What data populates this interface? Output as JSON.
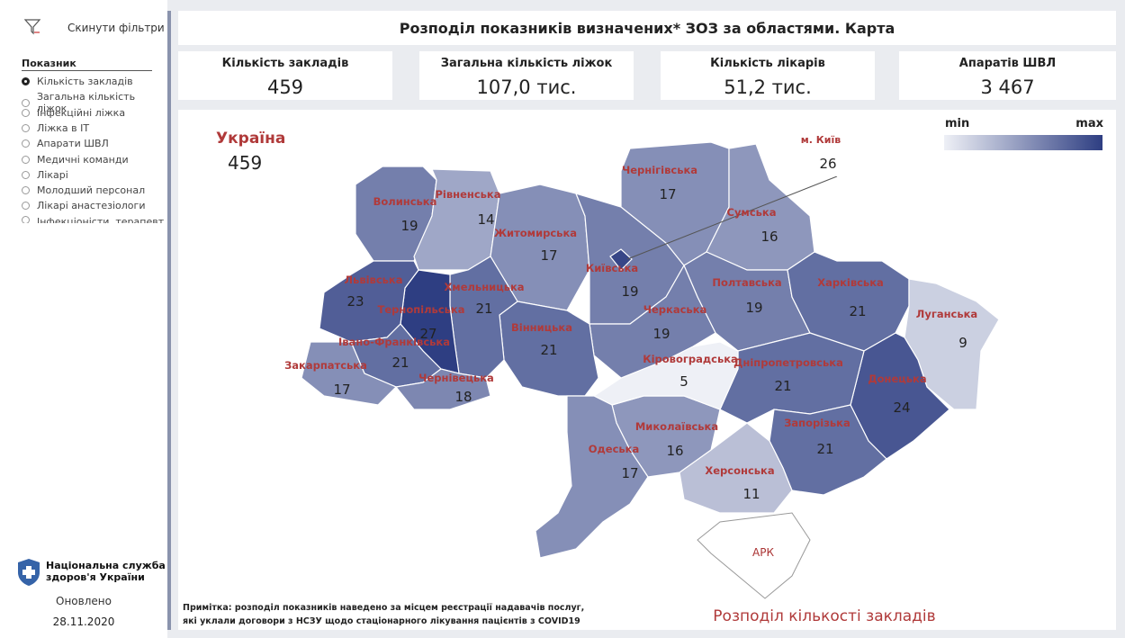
{
  "sidebar": {
    "reset": "Скинути фільтри",
    "group_title": "Показник",
    "options": [
      "Кількість закладів",
      "Загальна кількість ліжок",
      "Інфекційні ліжка",
      "Ліжка в ІТ",
      "Апарати ШВЛ",
      "Медичні команди",
      "Лікарі",
      "Молодший персонал",
      "Лікарі анастезіологи",
      "Інфекціоністи, терапевт"
    ],
    "selected": 0,
    "org": [
      "Національна служба",
      "здоров'я України"
    ],
    "updated_label": "Оновлено",
    "updated_date": "28.11.2020"
  },
  "header": {
    "title": "Розподіл показників визначених* ЗОЗ за областями. Карта"
  },
  "kpis": [
    {
      "label": "Кількість закладів",
      "value": "459"
    },
    {
      "label": "Загальна кількість ліжок",
      "value": "107,0 тис."
    },
    {
      "label": "Кількість лікарів",
      "value": "51,2 тис."
    },
    {
      "label": "Апаратів ШВЛ",
      "value": "3 467"
    }
  ],
  "map": {
    "total_label": "Україна",
    "total_value": 459,
    "legend": {
      "min": "min",
      "max": "max"
    },
    "regions": [
      {
        "name": "Волинська",
        "value": 19
      },
      {
        "name": "Рівненська",
        "value": 14
      },
      {
        "name": "Житомирська",
        "value": 17
      },
      {
        "name": "Київська",
        "value": 19
      },
      {
        "name": "Чернігівська",
        "value": 17
      },
      {
        "name": "Сумська",
        "value": 16
      },
      {
        "name": "Полтавська",
        "value": 19
      },
      {
        "name": "Харківська",
        "value": 21
      },
      {
        "name": "Луганська",
        "value": 9
      },
      {
        "name": "Донецька",
        "value": 24
      },
      {
        "name": "Дніпропетровська",
        "value": 21
      },
      {
        "name": "Запорізька",
        "value": 21
      },
      {
        "name": "Херсонська",
        "value": 11
      },
      {
        "name": "Миколаївська",
        "value": 16
      },
      {
        "name": "Кіровоградська",
        "value": 5
      },
      {
        "name": "Черкаська",
        "value": 19
      },
      {
        "name": "Вінницька",
        "value": 21
      },
      {
        "name": "Одеська",
        "value": 17
      },
      {
        "name": "Хмельницька",
        "value": 21
      },
      {
        "name": "Тернопільська",
        "value": 27
      },
      {
        "name": "Львівська",
        "value": 23
      },
      {
        "name": "Івано-Франківська",
        "value": 21
      },
      {
        "name": "Закарпатська",
        "value": 17
      },
      {
        "name": "Чернівецька",
        "value": 18
      },
      {
        "name": "м. Київ",
        "value": 26
      }
    ],
    "crimea": "АРК",
    "note": [
      "Примітка: розподіл показників наведено за місцем реєстрації надавачів послуг,",
      "які уклали договори  з НСЗУ щодо стаціонарного лікування пацієнтів з COVID19"
    ],
    "subtitle": "Розподіл кількості закладів"
  }
}
